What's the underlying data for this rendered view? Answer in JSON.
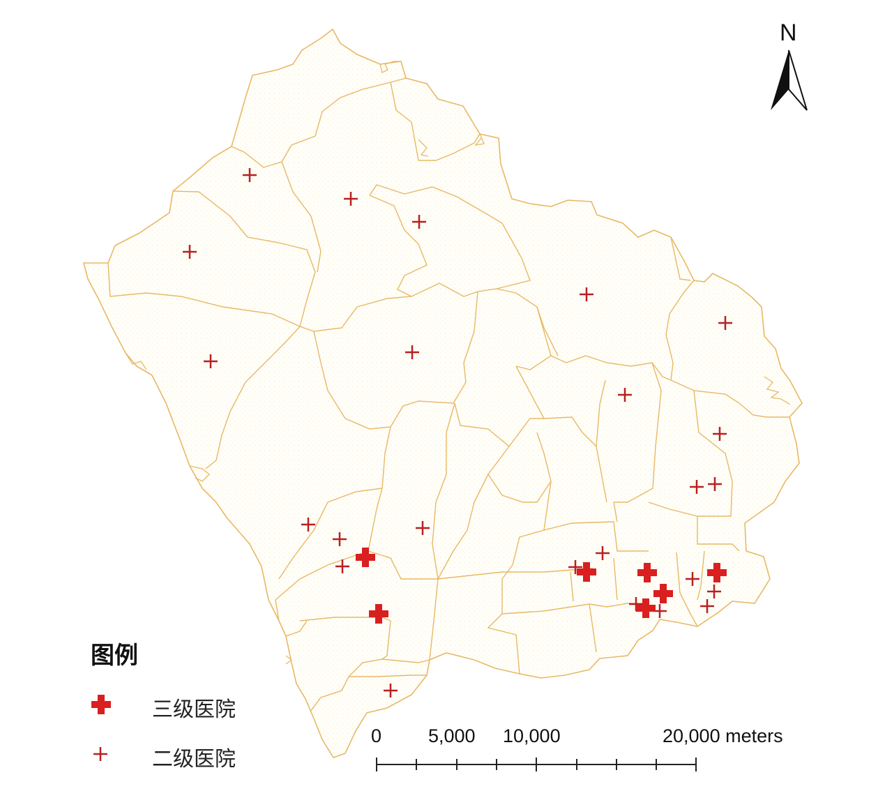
{
  "map": {
    "north_label": "N",
    "boundary_color": "#e8b866",
    "fill_color": "#fffef8",
    "marker_color": "#d91f1f"
  },
  "legend": {
    "title": "图例",
    "items": [
      {
        "label": "三级医院",
        "symbol": "tertiary-hospital"
      },
      {
        "label": "二级医院",
        "symbol": "secondary-hospital"
      }
    ]
  },
  "scale_bar": {
    "labels": [
      "0",
      "5,000",
      "10,000",
      "20,000 meters"
    ]
  }
}
